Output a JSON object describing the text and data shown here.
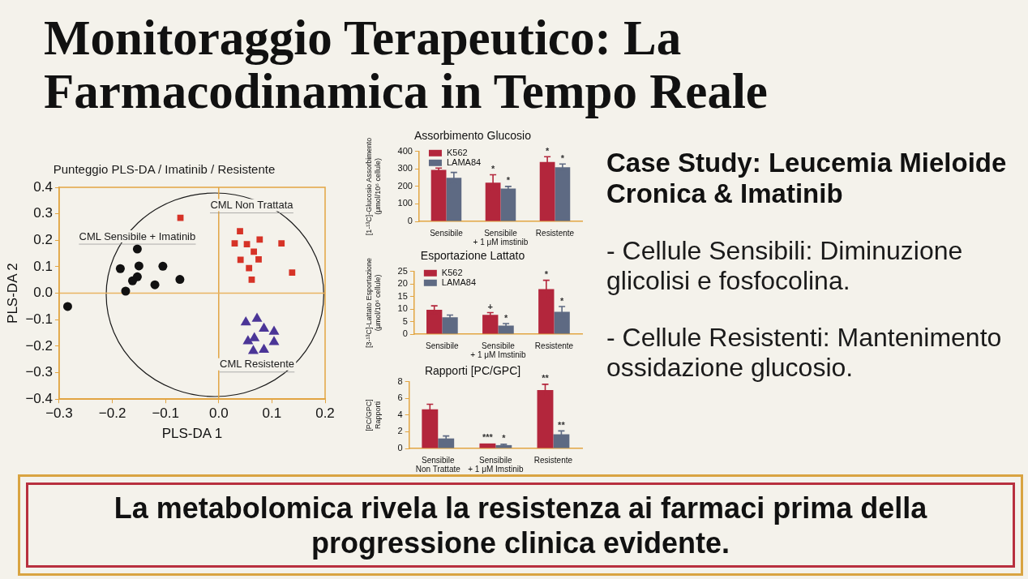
{
  "chart_data": [
    {
      "type": "other",
      "title": "Monitoraggio Terapeutico: La Farmacodinamica in Tempo Reale"
    },
    {
      "type": "scatter",
      "title": "Punteggio PLS-DA / Imatinib / Resistente",
      "xlabel": "PLS-DA 1",
      "ylabel": "PLS-DA 2",
      "xlim": [
        -0.3,
        0.2
      ],
      "ylim": [
        -0.4,
        0.4
      ],
      "xticks": [
        {
          "value": -0.3,
          "label": "−0.3"
        },
        {
          "value": -0.2,
          "label": "−0.2"
        },
        {
          "value": -0.1,
          "label": "−0.1"
        },
        {
          "value": 0,
          "label": "0.0"
        },
        0.1,
        0.2
      ],
      "yticks": [
        {
          "value": -0.4,
          "label": "−0.4"
        },
        {
          "value": -0.3,
          "label": "−0.3"
        },
        {
          "value": -0.2,
          "label": "−0.2"
        },
        {
          "value": -0.1,
          "label": "−0.1"
        },
        {
          "value": 0,
          "label": "0.0"
        },
        0.1,
        0.2,
        0.3,
        0.4
      ],
      "ref_lines": [
        {
          "axis": "x",
          "value": 0,
          "color": "#e2a543"
        },
        {
          "axis": "y",
          "value": 0,
          "color": "#e9b462"
        }
      ],
      "series": [
        {
          "name": "CML Sensibile + Imatinib",
          "color": "#111111",
          "marker": "circle",
          "x": [
            -0.153,
            -0.185,
            -0.15,
            -0.105,
            -0.153,
            -0.162,
            -0.175,
            -0.12,
            -0.073,
            -0.284
          ],
          "values": [
            0.167,
            0.093,
            0.103,
            0.102,
            0.062,
            0.047,
            0.008,
            0.032,
            0.052,
            -0.05
          ]
        },
        {
          "name": "CML Non Trattata",
          "color": "#d63327",
          "marker": "square",
          "x": [
            -0.072,
            0.04,
            0.03,
            0.053,
            0.077,
            0.118,
            0.066,
            0.041,
            0.075,
            0.057,
            0.062,
            0.138
          ],
          "values": [
            0.285,
            0.234,
            0.188,
            0.185,
            0.203,
            0.188,
            0.157,
            0.126,
            0.128,
            0.095,
            0.051,
            0.078
          ]
        },
        {
          "name": "CML Resistente",
          "color": "#4b3597",
          "marker": "triangle",
          "x": [
            0.051,
            0.072,
            0.085,
            0.104,
            0.067,
            0.055,
            0.104,
            0.085,
            0.065
          ],
          "values": [
            -0.11,
            -0.096,
            -0.134,
            -0.145,
            -0.17,
            -0.181,
            -0.184,
            -0.213,
            -0.218
          ]
        }
      ]
    },
    {
      "type": "bar",
      "title": "Assorbimento Glucosio",
      "ylabel": "[1-¹³C]-Glucosio Assorbimento\n(μmol/10⁶ cellule)",
      "categories": [
        "Sensibile",
        "Sensibile\n+ 1 μM imstinib",
        "Resistente"
      ],
      "ylim": [
        0,
        400
      ],
      "yticks": [
        0,
        100,
        200,
        300,
        400
      ],
      "legend": "top left",
      "series": [
        {
          "name": "K562",
          "color": "#b3263c",
          "values": [
            295,
            222,
            340
          ],
          "errors": [
            10,
            45,
            30
          ],
          "value_labels": [
            null,
            "*",
            "*"
          ]
        },
        {
          "name": "LAMA84",
          "color": "#5e6a83",
          "values": [
            250,
            188,
            310
          ],
          "errors": [
            30,
            12,
            18
          ],
          "value_labels": [
            null,
            "*",
            "*"
          ]
        }
      ]
    },
    {
      "type": "bar",
      "title": "Esportazione Lattato",
      "ylabel": "[3-¹³C]-Lattato Esportazione\n(μmol/10⁶ cellule)",
      "categories": [
        "Sensibile",
        "Sensibile\n+ 1 μM Imstinib",
        "Resistente"
      ],
      "ylim": [
        0,
        25
      ],
      "yticks": [
        0,
        5,
        10,
        15,
        20,
        25
      ],
      "legend": "top left",
      "series": [
        {
          "name": "K562",
          "color": "#b3263c",
          "values": [
            9.7,
            7.7,
            18
          ],
          "errors": [
            1.6,
            0.9,
            3.5
          ],
          "value_labels": [
            null,
            "+",
            "*"
          ]
        },
        {
          "name": "LAMA84",
          "color": "#5e6a83",
          "values": [
            6.7,
            3.4,
            8.9
          ],
          "errors": [
            0.9,
            0.8,
            2.1
          ],
          "value_labels": [
            null,
            "*",
            "*"
          ]
        }
      ]
    },
    {
      "type": "bar",
      "title": "Rapporti [PC/GPC]",
      "ylabel": "[PC/GPC]\nRapporti",
      "categories": [
        "Sensibile\nNon Trattate",
        "Sensibile\n+ 1 μM Imstinib",
        "Resistente"
      ],
      "ylim": [
        0,
        8
      ],
      "yticks": [
        0,
        2,
        4,
        6,
        8
      ],
      "series": [
        {
          "color": "#b3263c",
          "values": [
            4.7,
            0.6,
            7.0
          ],
          "errors": [
            0.6,
            null,
            0.7
          ],
          "value_labels": [
            null,
            "***",
            "**"
          ]
        },
        {
          "color": "#5e6a83",
          "values": [
            1.2,
            0.4,
            1.7
          ],
          "errors": [
            0.3,
            0.1,
            0.4
          ],
          "value_labels": [
            null,
            "*",
            "**"
          ]
        }
      ]
    },
    {
      "type": "other",
      "title": "Case Study: Leucemia Mieloide Cronica & Imatinib",
      "annotations": [
        "- Cellule Sensibili: Diminuzione glicolisi e fosfocolina.",
        "- Cellule Resistenti: Mantenimento ossidazione glucosio."
      ]
    },
    {
      "type": "other",
      "annotations": [
        "La metabolomica rivela la resistenza ai farmaci prima della progressione clinica evidente."
      ]
    }
  ]
}
